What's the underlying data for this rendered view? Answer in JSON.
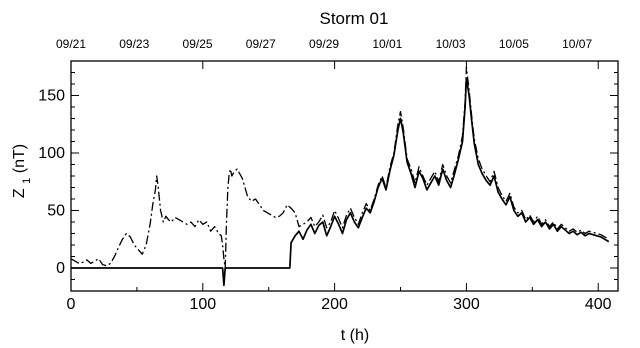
{
  "chart_data": {
    "type": "line",
    "title": "Storm 01",
    "xlabel": "t (h)",
    "ylabel_main": "Z",
    "ylabel_sub": "1",
    "ylabel_unit": " (nT)",
    "xlim": [
      0,
      415
    ],
    "ylim": [
      -20,
      180
    ],
    "x_ticks": [
      0,
      100,
      200,
      300,
      400
    ],
    "x_tick_labels": [
      "0",
      "100",
      "200",
      "300",
      "400"
    ],
    "y_ticks": [
      0,
      50,
      100,
      150
    ],
    "y_tick_labels": [
      "0",
      "50",
      "100",
      "150"
    ],
    "top_ticks": [
      0,
      48,
      96,
      144,
      192,
      240,
      288,
      336,
      384
    ],
    "top_tick_labels": [
      "09/21",
      "09/23",
      "09/25",
      "09/27",
      "09/29",
      "10/01",
      "10/03",
      "10/05",
      "10/07"
    ],
    "grid": false,
    "series": [
      {
        "style": "solid",
        "x": [
          0,
          115,
          116,
          117,
          118,
          165,
          166,
          167,
          170,
          173,
          176,
          179,
          182,
          185,
          188,
          191,
          194,
          197,
          200,
          203,
          206,
          209,
          212,
          215,
          218,
          221,
          224,
          227,
          230,
          233,
          236,
          239,
          242,
          245,
          248,
          250,
          252,
          255,
          258,
          261,
          264,
          267,
          270,
          273,
          276,
          279,
          282,
          285,
          288,
          291,
          294,
          297,
          299,
          300,
          301,
          302,
          304,
          306,
          309,
          312,
          315,
          318,
          321,
          324,
          327,
          330,
          333,
          336,
          339,
          342,
          345,
          348,
          351,
          354,
          357,
          360,
          363,
          366,
          369,
          372,
          375,
          378,
          381,
          384,
          387,
          390,
          393,
          396,
          399,
          402,
          405,
          408
        ],
        "y": [
          0,
          0,
          -15,
          0,
          0,
          0,
          0,
          22,
          28,
          32,
          25,
          33,
          38,
          30,
          37,
          40,
          28,
          36,
          45,
          38,
          30,
          42,
          48,
          40,
          35,
          44,
          52,
          48,
          58,
          70,
          78,
          68,
          85,
          98,
          120,
          130,
          118,
          92,
          82,
          70,
          84,
          78,
          68,
          74,
          80,
          72,
          86,
          76,
          70,
          82,
          95,
          110,
          140,
          165,
          158,
          150,
          128,
          108,
          90,
          82,
          76,
          72,
          80,
          66,
          60,
          55,
          62,
          50,
          45,
          48,
          40,
          44,
          38,
          42,
          36,
          40,
          34,
          38,
          32,
          36,
          33,
          30,
          32,
          29,
          31,
          28,
          30,
          29,
          28,
          27,
          25,
          23
        ]
      },
      {
        "style": "dashed",
        "x": [
          0,
          3,
          6,
          9,
          12,
          15,
          18,
          21,
          24,
          27,
          30,
          33,
          36,
          39,
          42,
          45,
          48,
          51,
          54,
          57,
          60,
          62,
          64,
          65,
          66,
          68,
          70,
          72,
          74,
          76,
          79,
          82,
          85,
          88,
          91,
          94,
          97,
          100,
          103,
          106,
          109,
          112,
          114,
          115,
          116,
          117,
          118,
          119,
          120,
          121,
          122,
          124,
          126,
          128,
          130,
          132,
          134,
          137,
          140,
          143,
          146,
          149,
          152,
          155,
          158,
          161,
          164,
          167,
          170,
          173,
          176,
          179,
          182,
          185,
          188,
          191,
          194,
          197,
          200,
          203,
          206,
          209,
          212,
          215,
          218,
          221,
          224,
          227,
          230,
          233,
          236,
          239,
          242,
          245,
          248,
          250,
          252,
          255,
          258,
          261,
          264,
          267,
          270,
          273,
          276,
          279,
          282,
          285,
          288,
          291,
          294,
          297,
          299,
          300,
          301,
          302,
          304,
          306,
          309,
          312,
          315,
          318,
          321,
          324,
          327,
          330,
          333,
          336,
          339,
          342,
          345,
          348,
          351,
          354,
          357,
          360,
          363,
          366,
          369,
          372,
          375,
          378,
          381,
          384,
          387,
          390,
          393,
          396,
          399,
          402,
          405,
          408
        ],
        "y": [
          8,
          6,
          4,
          5,
          7,
          4,
          6,
          8,
          3,
          2,
          4,
          10,
          18,
          25,
          30,
          27,
          20,
          16,
          12,
          20,
          38,
          55,
          68,
          80,
          72,
          50,
          40,
          45,
          42,
          40,
          44,
          42,
          40,
          38,
          40,
          36,
          42,
          38,
          40,
          32,
          36,
          30,
          28,
          20,
          8,
          0,
          40,
          70,
          82,
          86,
          80,
          84,
          86,
          82,
          78,
          70,
          62,
          58,
          60,
          55,
          50,
          48,
          46,
          44,
          45,
          48,
          55,
          52,
          48,
          36,
          38,
          40,
          44,
          36,
          40,
          46,
          35,
          40,
          50,
          43,
          35,
          46,
          52,
          44,
          38,
          48,
          56,
          50,
          60,
          72,
          80,
          70,
          88,
          100,
          125,
          136,
          122,
          95,
          86,
          74,
          88,
          80,
          72,
          78,
          84,
          75,
          90,
          80,
          74,
          86,
          98,
          115,
          145,
          175,
          165,
          155,
          132,
          112,
          95,
          86,
          80,
          75,
          84,
          70,
          63,
          58,
          65,
          53,
          48,
          50,
          42,
          46,
          40,
          45,
          38,
          42,
          36,
          40,
          34,
          38,
          35,
          32,
          34,
          31,
          33,
          30,
          32,
          31,
          30,
          29,
          27,
          25
        ]
      }
    ]
  }
}
